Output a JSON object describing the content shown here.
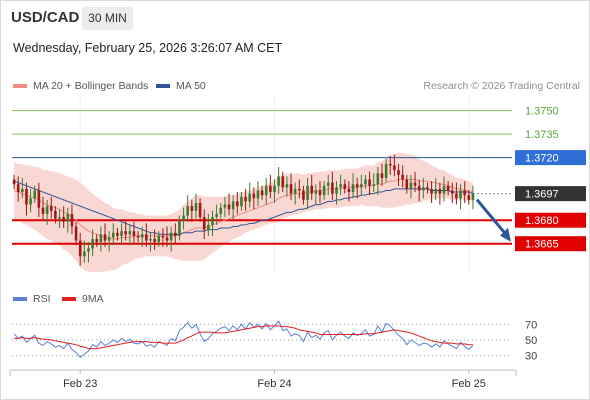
{
  "header": {
    "symbol": "USD/CAD",
    "timeframe": "30 MIN",
    "datetime": "Wednesday, February 25, 2026 3:26:07 AM CET"
  },
  "main_legend": [
    {
      "label": "MA 20 + Bollinger Bands",
      "color": "#f08c84"
    },
    {
      "label": "MA 50",
      "color": "#2f5597"
    }
  ],
  "credit": "Research © 2026 Trading Central",
  "rsi_legend": [
    {
      "label": "RSI",
      "color": "#5b7fd6"
    },
    {
      "label": "9MA",
      "color": "#e02020"
    }
  ],
  "colors": {
    "target": "#7fc35a",
    "pivot": "#2f5597",
    "support": "#e00000",
    "last": "#333333",
    "up_candle": "#3a7d2a",
    "down_candle": "#a01818",
    "band": "#f7c9c4",
    "ma20": "#f08c84",
    "ma50": "#2f5597",
    "arrow": "#2f5597"
  },
  "chart_data": [
    {
      "type": "candlestick",
      "title": "USD/CAD 30 MIN",
      "ylim": [
        1.3645,
        1.376
      ],
      "x_ticks": [
        "Feb 23",
        "Feb 24",
        "Feb 25"
      ],
      "levels": [
        {
          "value": 1.375,
          "label": "1.3750",
          "kind": "target"
        },
        {
          "value": 1.3735,
          "label": "1.3735",
          "kind": "target"
        },
        {
          "value": 1.372,
          "label": "1.3720",
          "kind": "pivot"
        },
        {
          "value": 1.3697,
          "label": "1.3697",
          "kind": "last"
        },
        {
          "value": 1.368,
          "label": "1.3680",
          "kind": "support"
        },
        {
          "value": 1.3665,
          "label": "1.3665",
          "kind": "support"
        }
      ],
      "close": [
        1.3703,
        1.3698,
        1.37,
        1.369,
        1.3694,
        1.3699,
        1.3688,
        1.3684,
        1.3689,
        1.3686,
        1.3681,
        1.3682,
        1.3679,
        1.3684,
        1.3676,
        1.3667,
        1.3657,
        1.366,
        1.3662,
        1.3668,
        1.3666,
        1.3671,
        1.3667,
        1.3669,
        1.3672,
        1.367,
        1.3673,
        1.3671,
        1.3673,
        1.367,
        1.3669,
        1.3671,
        1.3667,
        1.3668,
        1.3666,
        1.367,
        1.3669,
        1.3667,
        1.3672,
        1.367,
        1.368,
        1.3683,
        1.3689,
        1.3686,
        1.3691,
        1.3682,
        1.3674,
        1.3677,
        1.3682,
        1.3684,
        1.3688,
        1.369,
        1.3687,
        1.3692,
        1.3689,
        1.3695,
        1.3692,
        1.3697,
        1.3694,
        1.3699,
        1.3696,
        1.3702,
        1.3698,
        1.3702,
        1.3708,
        1.3701,
        1.3703,
        1.3697,
        1.37,
        1.3699,
        1.3693,
        1.3702,
        1.3697,
        1.3699,
        1.3696,
        1.3702,
        1.3704,
        1.3697,
        1.3701,
        1.3703,
        1.37,
        1.3698,
        1.3703,
        1.3701,
        1.3703,
        1.3706,
        1.3702,
        1.3703,
        1.371,
        1.3707,
        1.3716,
        1.3715,
        1.3712,
        1.3709,
        1.3706,
        1.37,
        1.3704,
        1.3702,
        1.3699,
        1.3701,
        1.37,
        1.3697,
        1.37,
        1.3697,
        1.3702,
        1.3699,
        1.3697,
        1.3694,
        1.3699,
        1.3696,
        1.3693,
        1.3697
      ],
      "ma20": [
        1.3699,
        1.3698,
        1.3697,
        1.3696,
        1.3695,
        1.3694,
        1.3693,
        1.3691,
        1.369,
        1.3689,
        1.3688,
        1.3687,
        1.3685,
        1.3684,
        1.3682,
        1.368,
        1.3677,
        1.3675,
        1.3673,
        1.3672,
        1.3671,
        1.367,
        1.3669,
        1.3669,
        1.3668,
        1.3668,
        1.3669,
        1.3669,
        1.3669,
        1.367,
        1.367,
        1.367,
        1.367,
        1.367,
        1.367,
        1.367,
        1.367,
        1.367,
        1.367,
        1.367,
        1.3671,
        1.3672,
        1.3673,
        1.3674,
        1.3675,
        1.3675,
        1.3675,
        1.3676,
        1.3677,
        1.3678,
        1.3679,
        1.368,
        1.3681,
        1.3682,
        1.3683,
        1.3684,
        1.3685,
        1.3686,
        1.3687,
        1.3688,
        1.3689,
        1.369,
        1.3691,
        1.3692,
        1.3694,
        1.3695,
        1.3696,
        1.3696,
        1.3697,
        1.3697,
        1.3697,
        1.3698,
        1.3698,
        1.3699,
        1.3699,
        1.3699,
        1.37,
        1.37,
        1.37,
        1.37,
        1.3701,
        1.3701,
        1.3701,
        1.3701,
        1.3702,
        1.3702,
        1.3702,
        1.3702,
        1.3703,
        1.3703,
        1.3704,
        1.3705,
        1.3705,
        1.3706,
        1.3706,
        1.3706,
        1.3706,
        1.3706,
        1.3705,
        1.3705,
        1.3705,
        1.3704,
        1.3704,
        1.3703,
        1.3703,
        1.3702,
        1.3701,
        1.37,
        1.37,
        1.3699,
        1.3699,
        1.3698
      ],
      "ma50": [
        1.3705,
        1.3704,
        1.3703,
        1.3702,
        1.3701,
        1.37,
        1.3699,
        1.3698,
        1.3697,
        1.3696,
        1.3695,
        1.3694,
        1.3693,
        1.3692,
        1.3691,
        1.369,
        1.3689,
        1.3688,
        1.3687,
        1.3686,
        1.3685,
        1.3684,
        1.3683,
        1.3682,
        1.3681,
        1.368,
        1.3679,
        1.3678,
        1.3677,
        1.3676,
        1.3675,
        1.3674,
        1.3673,
        1.3672,
        1.3672,
        1.3671,
        1.3671,
        1.3671,
        1.3671,
        1.3671,
        1.3671,
        1.3672,
        1.3672,
        1.3672,
        1.3673,
        1.3673,
        1.3673,
        1.3674,
        1.3674,
        1.3674,
        1.3675,
        1.3675,
        1.3675,
        1.3676,
        1.3676,
        1.3677,
        1.3677,
        1.3678,
        1.3678,
        1.3679,
        1.368,
        1.368,
        1.3681,
        1.3682,
        1.3683,
        1.3684,
        1.3685,
        1.3685,
        1.3686,
        1.3687,
        1.3687,
        1.3688,
        1.3689,
        1.369,
        1.369,
        1.3691,
        1.3692,
        1.3692,
        1.3693,
        1.3693,
        1.3694,
        1.3694,
        1.3695,
        1.3695,
        1.3696,
        1.3696,
        1.3697,
        1.3697,
        1.3698,
        1.3698,
        1.3699,
        1.3699,
        1.37,
        1.37,
        1.37,
        1.37,
        1.37,
        1.37,
        1.37,
        1.37,
        1.37,
        1.3699,
        1.3699,
        1.3699,
        1.3699,
        1.3699,
        1.3698,
        1.3698,
        1.3698,
        1.3698,
        1.3698,
        1.3697
      ],
      "bb_width": [
        0.0018,
        0.0018,
        0.0019,
        0.0019,
        0.002,
        0.002,
        0.0021,
        0.0021,
        0.0022,
        0.0022,
        0.0023,
        0.0023,
        0.0024,
        0.0024,
        0.0025,
        0.0026,
        0.0027,
        0.0027,
        0.0026,
        0.0025,
        0.0024,
        0.0023,
        0.0022,
        0.0021,
        0.002,
        0.0019,
        0.0018,
        0.0017,
        0.0016,
        0.0015,
        0.0014,
        0.0014,
        0.0013,
        0.0013,
        0.0013,
        0.0013,
        0.0013,
        0.0013,
        0.0014,
        0.0015,
        0.0016,
        0.0018,
        0.0019,
        0.002,
        0.0021,
        0.0021,
        0.002,
        0.0019,
        0.0018,
        0.0017,
        0.0016,
        0.0015,
        0.0015,
        0.0014,
        0.0014,
        0.0014,
        0.0013,
        0.0013,
        0.0013,
        0.0013,
        0.0013,
        0.0013,
        0.0013,
        0.0014,
        0.0014,
        0.0014,
        0.0014,
        0.0013,
        0.0013,
        0.0013,
        0.0012,
        0.0012,
        0.0012,
        0.0012,
        0.0012,
        0.0012,
        0.0012,
        0.0012,
        0.0012,
        0.0012,
        0.0012,
        0.0012,
        0.0012,
        0.0012,
        0.0012,
        0.0013,
        0.0013,
        0.0013,
        0.0014,
        0.0015,
        0.0016,
        0.0017,
        0.0017,
        0.0017,
        0.0017,
        0.0016,
        0.0016,
        0.0015,
        0.0014,
        0.0013,
        0.0012,
        0.0011,
        0.001,
        0.0009,
        0.0009,
        0.0008,
        0.0008,
        0.0007,
        0.0007,
        0.0007,
        0.0006,
        0.0006
      ],
      "forecast": {
        "from": 1.3697,
        "to": 1.3665
      }
    },
    {
      "type": "line",
      "title": "RSI",
      "ylim": [
        22,
        78
      ],
      "y_ticks": [
        70,
        50,
        30
      ],
      "series": [
        {
          "name": "RSI",
          "values": [
            58,
            52,
            55,
            47,
            52,
            56,
            46,
            43,
            48,
            45,
            41,
            43,
            39,
            46,
            38,
            34,
            28,
            32,
            36,
            44,
            41,
            48,
            43,
            46,
            50,
            47,
            52,
            48,
            51,
            46,
            45,
            48,
            42,
            44,
            41,
            48,
            46,
            43,
            52,
            49,
            62,
            66,
            72,
            65,
            70,
            58,
            48,
            52,
            58,
            61,
            65,
            67,
            62,
            68,
            63,
            70,
            64,
            72,
            66,
            70,
            64,
            71,
            63,
            68,
            74,
            62,
            64,
            55,
            58,
            56,
            48,
            60,
            53,
            56,
            51,
            59,
            62,
            50,
            56,
            60,
            55,
            52,
            59,
            56,
            58,
            63,
            55,
            57,
            68,
            60,
            71,
            68,
            62,
            56,
            52,
            44,
            50,
            47,
            43,
            46,
            45,
            41,
            45,
            41,
            49,
            45,
            42,
            39,
            47,
            42,
            38,
            43
          ]
        },
        {
          "name": "9MA",
          "values": [
            52,
            52,
            53,
            52,
            52,
            53,
            52,
            51,
            51,
            50,
            49,
            48,
            47,
            46,
            45,
            44,
            42,
            41,
            39,
            39,
            39,
            40,
            41,
            42,
            43,
            44,
            45,
            46,
            47,
            48,
            48,
            48,
            48,
            47,
            47,
            47,
            46,
            46,
            46,
            46,
            48,
            50,
            53,
            55,
            58,
            60,
            60,
            60,
            60,
            59,
            59,
            59,
            60,
            61,
            62,
            63,
            64,
            65,
            66,
            67,
            67,
            68,
            68,
            68,
            68,
            67,
            67,
            66,
            65,
            63,
            62,
            61,
            60,
            59,
            57,
            57,
            57,
            57,
            57,
            57,
            57,
            57,
            57,
            57,
            57,
            58,
            58,
            58,
            59,
            60,
            61,
            62,
            63,
            62,
            61,
            60,
            59,
            57,
            55,
            53,
            51,
            49,
            48,
            47,
            46,
            46,
            46,
            45,
            45,
            45,
            44,
            44
          ]
        }
      ]
    }
  ]
}
